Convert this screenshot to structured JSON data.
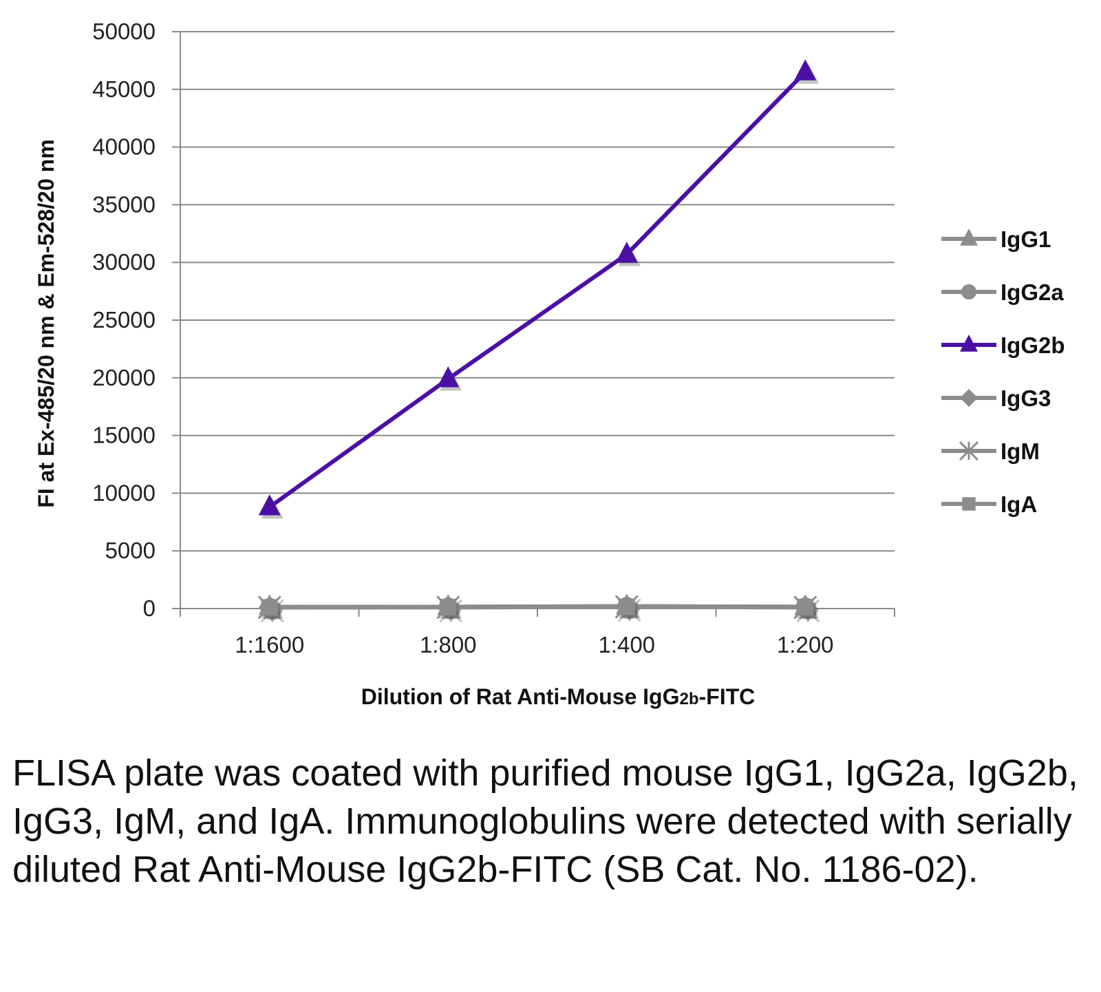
{
  "chart_data": {
    "type": "line",
    "ylabel": "FI at Ex-485/20 nm & Em-528/20 nm",
    "xlabel_main": "Dilution of Rat Anti-Mouse IgG",
    "xlabel_sub": "2b",
    "xlabel_tail": "-FITC",
    "categories": [
      "1:1600",
      "1:800",
      "1:400",
      "1:200"
    ],
    "ylim": [
      0,
      50000
    ],
    "yticks": [
      "0",
      "5000",
      "10000",
      "15000",
      "20000",
      "25000",
      "30000",
      "35000",
      "40000",
      "45000",
      "50000"
    ],
    "grid": true,
    "legend_position": "right",
    "series": [
      {
        "name": "IgG1",
        "marker": "triangle",
        "color": "#8c8c8c",
        "values": [
          150,
          150,
          200,
          150
        ]
      },
      {
        "name": "IgG2a",
        "marker": "circle",
        "color": "#8c8c8c",
        "values": [
          100,
          150,
          200,
          150
        ]
      },
      {
        "name": "IgG2b",
        "marker": "triangle",
        "color": "#4b0fa6",
        "values": [
          8800,
          19900,
          30700,
          46500
        ]
      },
      {
        "name": "IgG3",
        "marker": "diamond",
        "color": "#8c8c8c",
        "values": [
          120,
          150,
          200,
          150
        ]
      },
      {
        "name": "IgM",
        "marker": "star",
        "color": "#8c8c8c",
        "values": [
          100,
          100,
          150,
          100
        ]
      },
      {
        "name": "IgA",
        "marker": "square",
        "color": "#8c8c8c",
        "values": [
          100,
          120,
          150,
          120
        ]
      }
    ]
  },
  "caption": "FLISA plate was coated with purified mouse IgG1, IgG2a, IgG2b, IgG3, IgM, and IgA. Immunoglobulins were detected with serially diluted Rat Anti-Mouse IgG2b-FITC (SB Cat. No. 1186-02)."
}
